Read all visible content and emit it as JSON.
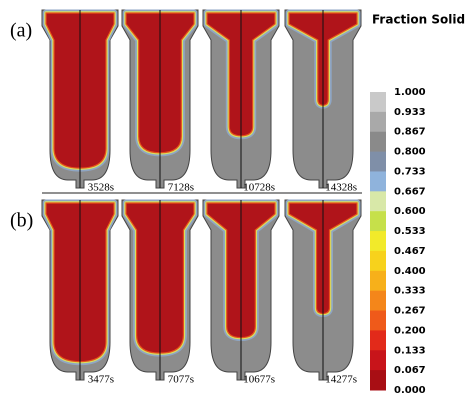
{
  "legend": {
    "title": "Fraction Solid",
    "ticks": [
      "1.000",
      "0.933",
      "0.867",
      "0.800",
      "0.733",
      "0.667",
      "0.600",
      "0.533",
      "0.467",
      "0.400",
      "0.333",
      "0.267",
      "0.200",
      "0.133",
      "0.067",
      "0.000"
    ],
    "colors": [
      "#c9c9c9",
      "#a9a9a9",
      "#8a8a8a",
      "#7f8fa8",
      "#8fb3dc",
      "#d8e8a8",
      "#c6e04a",
      "#f2ea2a",
      "#f7d21c",
      "#f7b01a",
      "#f4861a",
      "#ef5a1a",
      "#e22a1a",
      "#c8141a",
      "#a80e14"
    ]
  },
  "rows": [
    {
      "label": "(a)",
      "times": [
        "3528s",
        "7128s",
        "10728s",
        "14328s"
      ]
    },
    {
      "label": "(b)",
      "times": [
        "3477s",
        "7077s",
        "10677s",
        "14277s"
      ]
    }
  ]
}
